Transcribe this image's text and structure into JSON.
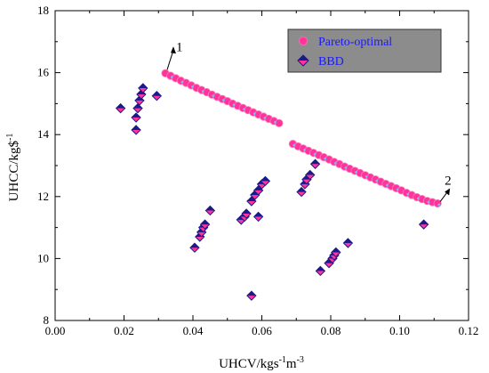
{
  "chart_data": {
    "type": "scatter",
    "xlabel": "UHCV/kgs",
    "xlabel_sup1": "-1",
    "xlabel_mid": "m",
    "xlabel_sup2": "-3",
    "ylabel": "UHCC/kg$",
    "ylabel_sup": "-1",
    "xlim": [
      0.0,
      0.12
    ],
    "ylim": [
      8,
      18
    ],
    "x_ticks": [
      "0.00",
      "0.02",
      "0.04",
      "0.06",
      "0.08",
      "0.10",
      "0.12"
    ],
    "y_ticks": [
      "8",
      "10",
      "12",
      "14",
      "16",
      "18"
    ],
    "legend_position": "top-right",
    "series": [
      {
        "name": "Pareto-optimal",
        "marker": "circle",
        "color": "#ff3399",
        "points": [
          [
            0.032,
            15.98
          ],
          [
            0.0335,
            15.9
          ],
          [
            0.035,
            15.82
          ],
          [
            0.0365,
            15.74
          ],
          [
            0.038,
            15.67
          ],
          [
            0.0395,
            15.59
          ],
          [
            0.041,
            15.51
          ],
          [
            0.0425,
            15.44
          ],
          [
            0.044,
            15.37
          ],
          [
            0.0455,
            15.29
          ],
          [
            0.047,
            15.22
          ],
          [
            0.0485,
            15.15
          ],
          [
            0.05,
            15.08
          ],
          [
            0.0515,
            15.0
          ],
          [
            0.053,
            14.93
          ],
          [
            0.0545,
            14.86
          ],
          [
            0.056,
            14.79
          ],
          [
            0.0575,
            14.72
          ],
          [
            0.059,
            14.65
          ],
          [
            0.0605,
            14.58
          ],
          [
            0.062,
            14.51
          ],
          [
            0.0635,
            14.44
          ],
          [
            0.065,
            14.37
          ],
          [
            0.069,
            13.7
          ],
          [
            0.0705,
            13.62
          ],
          [
            0.072,
            13.55
          ],
          [
            0.0735,
            13.48
          ],
          [
            0.075,
            13.41
          ],
          [
            0.0765,
            13.34
          ],
          [
            0.078,
            13.27
          ],
          [
            0.0795,
            13.2
          ],
          [
            0.081,
            13.12
          ],
          [
            0.0825,
            13.05
          ],
          [
            0.084,
            12.97
          ],
          [
            0.0855,
            12.9
          ],
          [
            0.087,
            12.83
          ],
          [
            0.0885,
            12.76
          ],
          [
            0.09,
            12.69
          ],
          [
            0.0915,
            12.62
          ],
          [
            0.093,
            12.55
          ],
          [
            0.0945,
            12.48
          ],
          [
            0.096,
            12.41
          ],
          [
            0.0975,
            12.34
          ],
          [
            0.099,
            12.27
          ],
          [
            0.1005,
            12.2
          ],
          [
            0.102,
            12.12
          ],
          [
            0.1035,
            12.05
          ],
          [
            0.105,
            11.98
          ],
          [
            0.1065,
            11.92
          ],
          [
            0.108,
            11.86
          ],
          [
            0.1095,
            11.82
          ],
          [
            0.111,
            11.78
          ]
        ]
      },
      {
        "name": "BBD",
        "marker": "diamond",
        "color": "#1a1a8c",
        "points": [
          [
            0.019,
            14.85
          ],
          [
            0.0235,
            14.15
          ],
          [
            0.0235,
            14.55
          ],
          [
            0.024,
            14.85
          ],
          [
            0.0245,
            15.1
          ],
          [
            0.025,
            15.3
          ],
          [
            0.0255,
            15.5
          ],
          [
            0.0295,
            15.25
          ],
          [
            0.0405,
            10.35
          ],
          [
            0.042,
            10.7
          ],
          [
            0.0425,
            10.85
          ],
          [
            0.043,
            11.0
          ],
          [
            0.0435,
            11.1
          ],
          [
            0.045,
            11.55
          ],
          [
            0.054,
            11.25
          ],
          [
            0.055,
            11.35
          ],
          [
            0.0555,
            11.45
          ],
          [
            0.057,
            8.8
          ],
          [
            0.057,
            11.85
          ],
          [
            0.058,
            12.05
          ],
          [
            0.059,
            11.35
          ],
          [
            0.059,
            12.2
          ],
          [
            0.06,
            12.4
          ],
          [
            0.061,
            12.5
          ],
          [
            0.0715,
            12.15
          ],
          [
            0.0725,
            12.4
          ],
          [
            0.073,
            12.55
          ],
          [
            0.074,
            12.7
          ],
          [
            0.0755,
            13.05
          ],
          [
            0.077,
            9.6
          ],
          [
            0.0795,
            9.85
          ],
          [
            0.0805,
            10.0
          ],
          [
            0.081,
            10.1
          ],
          [
            0.0815,
            10.2
          ],
          [
            0.085,
            10.5
          ],
          [
            0.107,
            11.1
          ]
        ]
      }
    ],
    "annotations": [
      {
        "text": "1",
        "x": 0.032,
        "y": 15.98
      },
      {
        "text": "2",
        "x": 0.111,
        "y": 11.78
      }
    ]
  }
}
